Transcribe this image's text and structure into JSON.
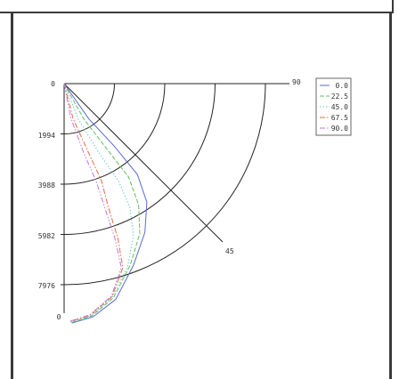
{
  "chart_data": {
    "type": "line",
    "title": "",
    "angle_labels": {
      "start": "0",
      "diagonal": "45",
      "end": "90"
    },
    "radial_ticks": [
      "0",
      "1994",
      "3988",
      "5982",
      "7976"
    ],
    "bottom_label": "0",
    "legend_position": "top-right",
    "series": [
      {
        "name": "0.0",
        "color": "#5a6ad8",
        "dash": "",
        "points": [
          [
            0,
            0
          ],
          [
            980,
            1400
          ],
          [
            2000,
            2500
          ],
          [
            2900,
            3600
          ],
          [
            3280,
            4700
          ],
          [
            3200,
            5900
          ],
          [
            2750,
            7200
          ],
          [
            2050,
            8550
          ],
          [
            1150,
            9250
          ],
          [
            300,
            9500
          ]
        ]
      },
      {
        "name": "22.5",
        "color": "#5fbf5f",
        "dash": "5,2",
        "points": [
          [
            0,
            0
          ],
          [
            780,
            1400
          ],
          [
            1700,
            2600
          ],
          [
            2550,
            3700
          ],
          [
            2950,
            4800
          ],
          [
            3000,
            5950
          ],
          [
            2620,
            7200
          ],
          [
            1950,
            8500
          ],
          [
            1100,
            9220
          ],
          [
            280,
            9480
          ]
        ]
      },
      {
        "name": "45.0",
        "color": "#6ec8c8",
        "dash": "1.5,2",
        "points": [
          [
            0,
            0
          ],
          [
            560,
            1400
          ],
          [
            1350,
            2700
          ],
          [
            2150,
            3850
          ],
          [
            2600,
            4900
          ],
          [
            2750,
            6000
          ],
          [
            2520,
            7250
          ],
          [
            1900,
            8480
          ],
          [
            1080,
            9200
          ],
          [
            260,
            9460
          ]
        ]
      },
      {
        "name": "67.5",
        "color": "#ea6a45",
        "dash": "6,2,1.5,2",
        "points": [
          [
            0,
            0
          ],
          [
            360,
            1400
          ],
          [
            950,
            2700
          ],
          [
            1480,
            3850
          ],
          [
            1750,
            4900
          ],
          [
            2120,
            6100
          ],
          [
            2330,
            7300
          ],
          [
            1900,
            8450
          ],
          [
            1050,
            9180
          ],
          [
            240,
            9440
          ]
        ]
      },
      {
        "name": "90.0",
        "color": "#c27ad8",
        "dash": "6,2,1.5,2,1.5,2",
        "points": [
          [
            0,
            0
          ],
          [
            260,
            1350
          ],
          [
            760,
            2700
          ],
          [
            1280,
            3900
          ],
          [
            1620,
            4950
          ],
          [
            2000,
            6100
          ],
          [
            2270,
            7300
          ],
          [
            1870,
            8430
          ],
          [
            1020,
            9170
          ],
          [
            220,
            9430
          ]
        ]
      }
    ]
  }
}
